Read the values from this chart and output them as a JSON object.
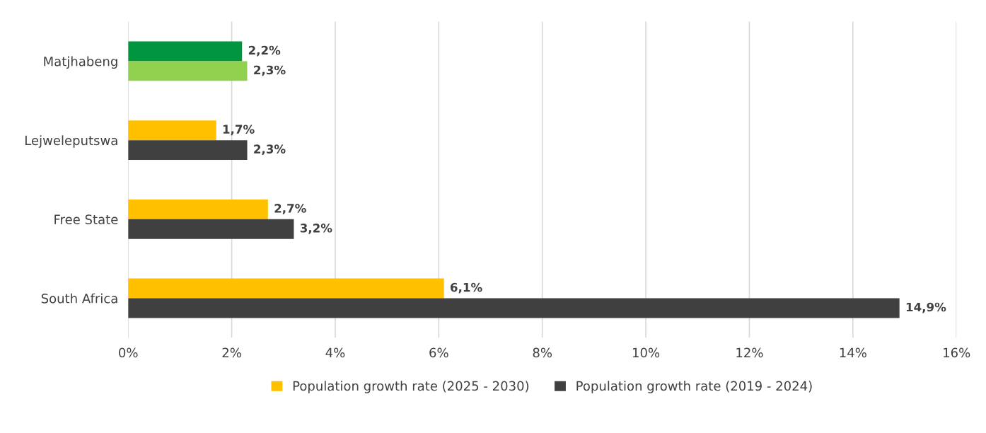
{
  "chart_data": {
    "type": "bar",
    "orientation": "horizontal",
    "categories": [
      "Matjhabeng",
      "Lejweleputswa",
      "Free State",
      "South Africa"
    ],
    "series": [
      {
        "name": "Population growth rate (2025 - 2030)",
        "color": "#ffc000",
        "colors": [
          "#00963f",
          "#ffc000",
          "#ffc000",
          "#ffc000"
        ],
        "values": [
          2.2,
          1.7,
          2.7,
          6.1
        ],
        "value_labels": [
          "2,2%",
          "1,7%",
          "2,7%",
          "6,1%"
        ]
      },
      {
        "name": "Population growth rate (2019 - 2024)",
        "color": "#404040",
        "colors": [
          "#92d050",
          "#404040",
          "#404040",
          "#404040"
        ],
        "values": [
          2.3,
          2.3,
          3.2,
          14.9
        ],
        "value_labels": [
          "2,3%",
          "2,3%",
          "3,2%",
          "14,9%"
        ]
      }
    ],
    "xlim": [
      0,
      16
    ],
    "xticks": [
      {
        "value": 0,
        "label": "0%"
      },
      {
        "value": 2,
        "label": "2%"
      },
      {
        "value": 4,
        "label": "4%"
      },
      {
        "value": 6,
        "label": "6%"
      },
      {
        "value": 8,
        "label": "8%"
      },
      {
        "value": 10,
        "label": "10%"
      },
      {
        "value": 12,
        "label": "12%"
      },
      {
        "value": 14,
        "label": "14%"
      },
      {
        "value": 16,
        "label": "16%"
      }
    ],
    "grid": "x",
    "legend": "bottom"
  }
}
